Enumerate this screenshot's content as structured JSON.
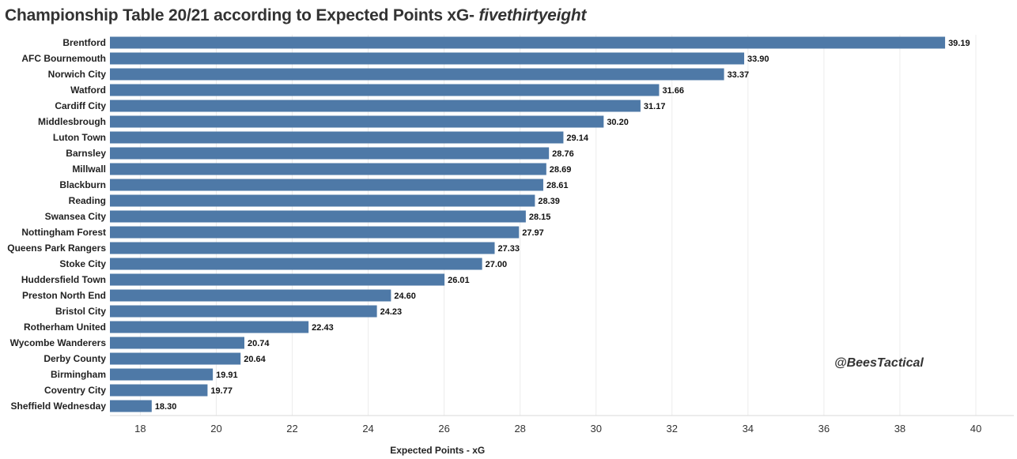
{
  "title": {
    "main": "Championship Table 20/21 according to Expected Points xG- ",
    "source": "fivethirtyeight"
  },
  "watermark": "@BeesTactical",
  "colors": {
    "bar": "#4e79a7",
    "grid": "#ececec",
    "text": "#333333"
  },
  "chart_data": {
    "type": "bar",
    "orientation": "horizontal",
    "categories": [
      "Brentford",
      "AFC Bournemouth",
      "Norwich City",
      "Watford",
      "Cardiff City",
      "Middlesbrough",
      "Luton Town",
      "Barnsley",
      "Millwall",
      "Blackburn",
      "Reading",
      "Swansea City",
      "Nottingham Forest",
      "Queens Park Rangers",
      "Stoke City",
      "Huddersfield Town",
      "Preston North End",
      "Bristol City",
      "Rotherham United",
      "Wycombe Wanderers",
      "Derby County",
      "Birmingham",
      "Coventry City",
      "Sheffield Wednesday"
    ],
    "values": [
      39.19,
      33.9,
      33.37,
      31.66,
      31.17,
      30.2,
      29.14,
      28.76,
      28.69,
      28.61,
      28.39,
      28.15,
      27.97,
      27.33,
      27.0,
      26.01,
      24.6,
      24.23,
      22.43,
      20.74,
      20.64,
      19.91,
      19.77,
      18.3
    ],
    "value_labels": [
      "39.19",
      "33.90",
      "33.37",
      "31.66",
      "31.17",
      "30.20",
      "29.14",
      "28.76",
      "28.69",
      "28.61",
      "28.39",
      "28.15",
      "27.97",
      "27.33",
      "27.00",
      "26.01",
      "24.60",
      "24.23",
      "22.43",
      "20.74",
      "20.64",
      "19.91",
      "19.77",
      "18.30"
    ],
    "xlabel": "Expected Points - xG",
    "xlim": [
      17.2,
      41
    ],
    "xticks": [
      18,
      20,
      22,
      24,
      26,
      28,
      30,
      32,
      34,
      36,
      38,
      40
    ],
    "grid": true
  }
}
